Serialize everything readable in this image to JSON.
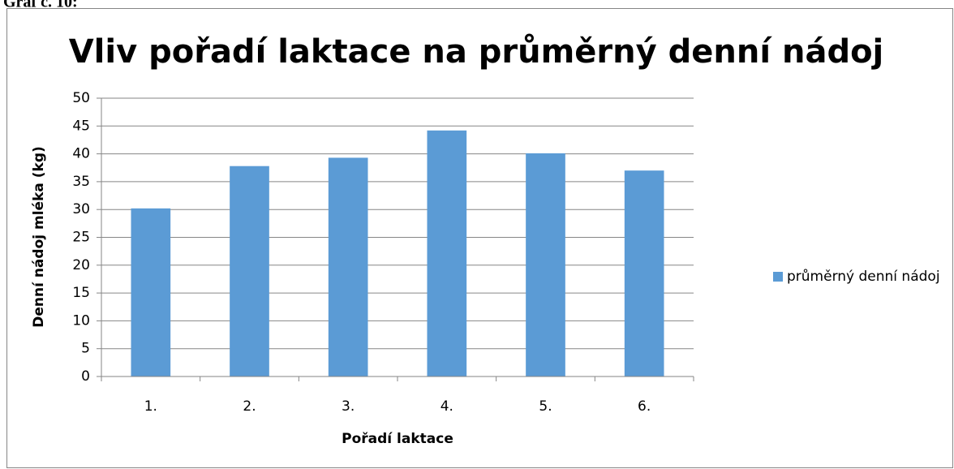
{
  "caption": "Graf č. 10:",
  "chart_data": {
    "type": "bar",
    "title": "Vliv pořadí laktace na průměrný denní nádoj",
    "x_label": "Pořadí laktace",
    "y_label": "Denní nádoj mléka (kg)",
    "categories": [
      "1.",
      "2.",
      "3.",
      "4.",
      "5.",
      "6."
    ],
    "series": [
      {
        "name": "průměrný denní nádoj",
        "color": "#5b9bd5",
        "values": [
          30.2,
          37.8,
          39.3,
          44.2,
          40.1,
          37.0
        ]
      }
    ],
    "ylim": [
      0,
      50
    ],
    "yticks": [
      0,
      5,
      10,
      15,
      20,
      25,
      30,
      35,
      40,
      45,
      50
    ],
    "grid": true,
    "legend": "right"
  }
}
